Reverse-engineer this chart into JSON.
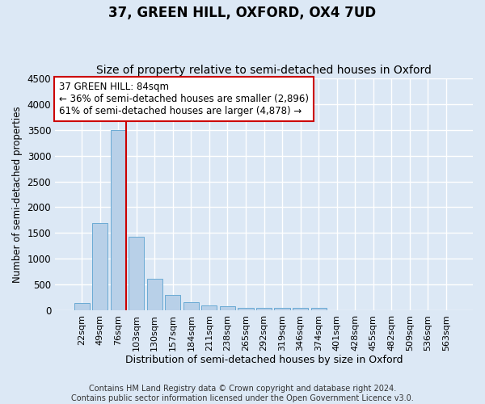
{
  "title": "37, GREEN HILL, OXFORD, OX4 7UD",
  "subtitle": "Size of property relative to semi-detached houses in Oxford",
  "xlabel": "Distribution of semi-detached houses by size in Oxford",
  "ylabel": "Number of semi-detached properties",
  "bar_labels": [
    "22sqm",
    "49sqm",
    "76sqm",
    "103sqm",
    "130sqm",
    "157sqm",
    "184sqm",
    "211sqm",
    "238sqm",
    "265sqm",
    "292sqm",
    "319sqm",
    "346sqm",
    "374sqm",
    "401sqm",
    "428sqm",
    "455sqm",
    "482sqm",
    "509sqm",
    "536sqm",
    "563sqm"
  ],
  "bar_values": [
    140,
    1700,
    3490,
    1420,
    610,
    290,
    160,
    100,
    70,
    50,
    50,
    45,
    40,
    40,
    0,
    0,
    0,
    0,
    0,
    0,
    0
  ],
  "bar_color": "#b8d0e8",
  "bar_edge_color": "#6aaad4",
  "vline_color": "#cc0000",
  "annotation_text": "37 GREEN HILL: 84sqm\n← 36% of semi-detached houses are smaller (2,896)\n61% of semi-detached houses are larger (4,878) →",
  "annotation_box_facecolor": "#ffffff",
  "annotation_box_edgecolor": "#cc0000",
  "ylim": [
    0,
    4500
  ],
  "yticks": [
    0,
    500,
    1000,
    1500,
    2000,
    2500,
    3000,
    3500,
    4000,
    4500
  ],
  "footnote": "Contains HM Land Registry data © Crown copyright and database right 2024.\nContains public sector information licensed under the Open Government Licence v3.0.",
  "fig_bg_color": "#dce8f5",
  "plot_bg_color": "#dce8f5",
  "grid_color": "#ffffff",
  "title_fontsize": 12,
  "subtitle_fontsize": 10,
  "annotation_fontsize": 8.5,
  "footnote_fontsize": 7,
  "ylabel_fontsize": 8.5,
  "xlabel_fontsize": 9,
  "tick_fontsize": 8,
  "ytick_fontsize": 8.5
}
